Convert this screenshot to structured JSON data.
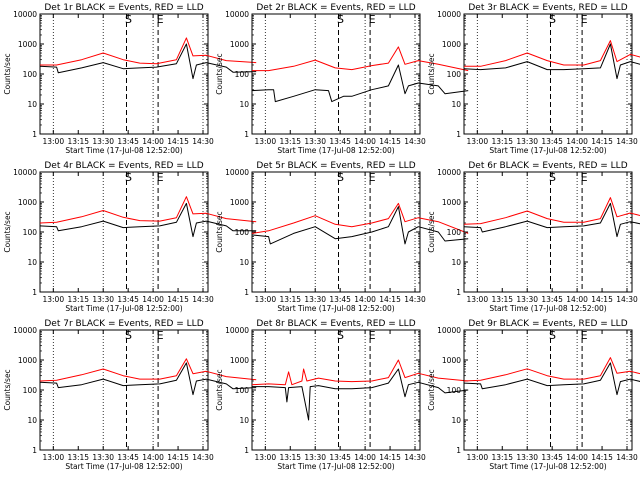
{
  "chart_data": {
    "type": "line",
    "y_scale": "log",
    "ylim": [
      1,
      10000
    ],
    "y_ticks": [
      1,
      10,
      100,
      1000,
      10000
    ],
    "y_tick_labels": [
      "1",
      "10",
      "100",
      "1000",
      "10000"
    ],
    "xlim": [
      "12:52",
      "14:33"
    ],
    "x_ticks": [
      "13:00",
      "13:15",
      "13:30",
      "13:45",
      "14:00",
      "14:15",
      "14:30"
    ],
    "x_tick_labels": [
      "13:00",
      "13:15",
      "13:30",
      "13:45",
      "14:00",
      "14:15",
      "14:30"
    ],
    "ylabel": "Counts/sec",
    "xlabel": "Start Time (17-Jul-08 12:52:00)",
    "dotted_lines": [
      "13:00",
      "13:30",
      "14:00",
      "14:30"
    ],
    "dashed_lines": [
      {
        "x": "13:44",
        "label": "S"
      },
      {
        "x": "14:03",
        "label": "E"
      }
    ],
    "series_colors": {
      "events": "#000000",
      "lld": "#ff0000"
    },
    "panels": [
      {
        "title": "Det 1r BLACK = Events, RED = LLD",
        "lld": [
          [
            0,
            200
          ],
          [
            10,
            200
          ],
          [
            25,
            300
          ],
          [
            38,
            500
          ],
          [
            50,
            300
          ],
          [
            60,
            230
          ],
          [
            70,
            220
          ],
          [
            82,
            300
          ],
          [
            88,
            1600
          ],
          [
            92,
            400
          ],
          [
            100,
            420
          ],
          [
            112,
            280
          ],
          [
            130,
            240
          ]
        ],
        "events": [
          [
            0,
            180
          ],
          [
            10,
            170
          ],
          [
            11,
            110
          ],
          [
            25,
            160
          ],
          [
            38,
            240
          ],
          [
            50,
            150
          ],
          [
            60,
            160
          ],
          [
            70,
            170
          ],
          [
            82,
            220
          ],
          [
            88,
            1000
          ],
          [
            92,
            70
          ],
          [
            94,
            200
          ],
          [
            100,
            240
          ],
          [
            112,
            170
          ],
          [
            116,
            115
          ],
          [
            130,
            120
          ]
        ]
      },
      {
        "title": "Det 2r BLACK = Events, RED = LLD",
        "lld": [
          [
            0,
            130
          ],
          [
            10,
            130
          ],
          [
            25,
            180
          ],
          [
            38,
            290
          ],
          [
            50,
            160
          ],
          [
            60,
            140
          ],
          [
            72,
            190
          ],
          [
            82,
            230
          ],
          [
            88,
            800
          ],
          [
            92,
            210
          ],
          [
            100,
            280
          ],
          [
            112,
            210
          ],
          [
            130,
            130
          ]
        ],
        "events": [
          [
            0,
            28
          ],
          [
            10,
            30
          ],
          [
            13,
            30
          ],
          [
            14,
            12
          ],
          [
            25,
            18
          ],
          [
            38,
            30
          ],
          [
            46,
            28
          ],
          [
            48,
            12
          ],
          [
            55,
            18
          ],
          [
            60,
            18
          ],
          [
            72,
            30
          ],
          [
            82,
            40
          ],
          [
            88,
            200
          ],
          [
            92,
            22
          ],
          [
            94,
            40
          ],
          [
            100,
            50
          ],
          [
            112,
            40
          ],
          [
            116,
            22
          ],
          [
            130,
            28
          ]
        ]
      },
      {
        "title": "Det 3r BLACK = Events, RED = LLD",
        "lld": [
          [
            0,
            180
          ],
          [
            10,
            180
          ],
          [
            25,
            280
          ],
          [
            38,
            500
          ],
          [
            50,
            280
          ],
          [
            60,
            200
          ],
          [
            72,
            200
          ],
          [
            82,
            280
          ],
          [
            88,
            1300
          ],
          [
            92,
            260
          ],
          [
            100,
            450
          ],
          [
            112,
            300
          ],
          [
            130,
            200
          ]
        ],
        "events": [
          [
            0,
            150
          ],
          [
            10,
            140
          ],
          [
            25,
            160
          ],
          [
            38,
            260
          ],
          [
            50,
            140
          ],
          [
            60,
            140
          ],
          [
            72,
            150
          ],
          [
            82,
            160
          ],
          [
            88,
            1000
          ],
          [
            92,
            70
          ],
          [
            94,
            200
          ],
          [
            100,
            260
          ],
          [
            112,
            170
          ],
          [
            116,
            110
          ],
          [
            130,
            100
          ]
        ]
      },
      {
        "title": "Det 4r BLACK = Events, RED = LLD",
        "lld": [
          [
            0,
            200
          ],
          [
            10,
            210
          ],
          [
            25,
            320
          ],
          [
            38,
            520
          ],
          [
            50,
            310
          ],
          [
            60,
            240
          ],
          [
            72,
            230
          ],
          [
            82,
            300
          ],
          [
            88,
            1500
          ],
          [
            92,
            400
          ],
          [
            100,
            420
          ],
          [
            112,
            280
          ],
          [
            130,
            220
          ]
        ],
        "events": [
          [
            0,
            160
          ],
          [
            10,
            150
          ],
          [
            11,
            110
          ],
          [
            25,
            150
          ],
          [
            38,
            230
          ],
          [
            50,
            140
          ],
          [
            60,
            150
          ],
          [
            72,
            160
          ],
          [
            82,
            210
          ],
          [
            88,
            900
          ],
          [
            92,
            70
          ],
          [
            94,
            200
          ],
          [
            100,
            230
          ],
          [
            112,
            160
          ],
          [
            116,
            110
          ],
          [
            130,
            110
          ]
        ]
      },
      {
        "title": "Det 5r BLACK = Events, RED = LLD",
        "lld": [
          [
            0,
            90
          ],
          [
            10,
            110
          ],
          [
            25,
            200
          ],
          [
            38,
            350
          ],
          [
            50,
            180
          ],
          [
            60,
            150
          ],
          [
            72,
            200
          ],
          [
            82,
            280
          ],
          [
            88,
            900
          ],
          [
            92,
            220
          ],
          [
            100,
            300
          ],
          [
            112,
            220
          ],
          [
            130,
            90
          ]
        ],
        "events": [
          [
            0,
            80
          ],
          [
            10,
            70
          ],
          [
            11,
            40
          ],
          [
            25,
            90
          ],
          [
            38,
            150
          ],
          [
            50,
            60
          ],
          [
            60,
            70
          ],
          [
            72,
            100
          ],
          [
            82,
            150
          ],
          [
            88,
            700
          ],
          [
            92,
            40
          ],
          [
            94,
            100
          ],
          [
            100,
            150
          ],
          [
            112,
            100
          ],
          [
            116,
            50
          ],
          [
            130,
            60
          ]
        ]
      },
      {
        "title": "Det 6r BLACK = Events, RED = LLD",
        "lld": [
          [
            0,
            180
          ],
          [
            10,
            190
          ],
          [
            25,
            300
          ],
          [
            38,
            500
          ],
          [
            50,
            280
          ],
          [
            60,
            210
          ],
          [
            72,
            210
          ],
          [
            82,
            280
          ],
          [
            88,
            1400
          ],
          [
            92,
            320
          ],
          [
            100,
            430
          ],
          [
            112,
            290
          ],
          [
            130,
            200
          ]
        ],
        "events": [
          [
            0,
            150
          ],
          [
            10,
            140
          ],
          [
            11,
            100
          ],
          [
            25,
            150
          ],
          [
            38,
            230
          ],
          [
            50,
            140
          ],
          [
            60,
            150
          ],
          [
            72,
            160
          ],
          [
            82,
            200
          ],
          [
            88,
            900
          ],
          [
            92,
            70
          ],
          [
            94,
            180
          ],
          [
            100,
            220
          ],
          [
            112,
            160
          ],
          [
            116,
            100
          ],
          [
            130,
            110
          ]
        ]
      },
      {
        "title": "Det 7r BLACK = Events, RED = LLD",
        "lld": [
          [
            0,
            200
          ],
          [
            10,
            210
          ],
          [
            25,
            320
          ],
          [
            38,
            500
          ],
          [
            50,
            300
          ],
          [
            60,
            230
          ],
          [
            72,
            230
          ],
          [
            82,
            300
          ],
          [
            88,
            1100
          ],
          [
            92,
            350
          ],
          [
            100,
            420
          ],
          [
            112,
            280
          ],
          [
            130,
            220
          ]
        ],
        "events": [
          [
            0,
            180
          ],
          [
            10,
            170
          ],
          [
            11,
            120
          ],
          [
            25,
            150
          ],
          [
            38,
            230
          ],
          [
            50,
            140
          ],
          [
            60,
            150
          ],
          [
            72,
            160
          ],
          [
            82,
            210
          ],
          [
            88,
            800
          ],
          [
            92,
            70
          ],
          [
            94,
            200
          ],
          [
            100,
            230
          ],
          [
            112,
            160
          ],
          [
            116,
            110
          ],
          [
            130,
            120
          ]
        ]
      },
      {
        "title": "Det 8r BLACK = Events, RED = LLD",
        "lld": [
          [
            0,
            150
          ],
          [
            10,
            160
          ],
          [
            20,
            150
          ],
          [
            22,
            400
          ],
          [
            24,
            150
          ],
          [
            30,
            200
          ],
          [
            31,
            500
          ],
          [
            33,
            200
          ],
          [
            40,
            250
          ],
          [
            50,
            200
          ],
          [
            60,
            190
          ],
          [
            72,
            200
          ],
          [
            82,
            260
          ],
          [
            88,
            1000
          ],
          [
            92,
            260
          ],
          [
            100,
            360
          ],
          [
            112,
            250
          ],
          [
            130,
            200
          ]
        ],
        "events": [
          [
            0,
            130
          ],
          [
            10,
            130
          ],
          [
            20,
            120
          ],
          [
            21,
            40
          ],
          [
            22,
            120
          ],
          [
            30,
            130
          ],
          [
            34,
            10
          ],
          [
            35,
            130
          ],
          [
            40,
            140
          ],
          [
            50,
            110
          ],
          [
            60,
            110
          ],
          [
            72,
            120
          ],
          [
            82,
            170
          ],
          [
            88,
            500
          ],
          [
            92,
            60
          ],
          [
            94,
            150
          ],
          [
            100,
            180
          ],
          [
            112,
            120
          ],
          [
            116,
            80
          ],
          [
            130,
            100
          ]
        ]
      },
      {
        "title": "Det 9r BLACK = Events, RED = LLD",
        "lld": [
          [
            0,
            200
          ],
          [
            10,
            210
          ],
          [
            25,
            320
          ],
          [
            38,
            510
          ],
          [
            50,
            300
          ],
          [
            60,
            230
          ],
          [
            72,
            230
          ],
          [
            82,
            300
          ],
          [
            88,
            1200
          ],
          [
            92,
            360
          ],
          [
            100,
            420
          ],
          [
            112,
            290
          ],
          [
            130,
            230
          ]
        ],
        "events": [
          [
            0,
            170
          ],
          [
            10,
            160
          ],
          [
            11,
            110
          ],
          [
            25,
            150
          ],
          [
            38,
            230
          ],
          [
            50,
            140
          ],
          [
            60,
            150
          ],
          [
            72,
            160
          ],
          [
            82,
            210
          ],
          [
            88,
            800
          ],
          [
            92,
            70
          ],
          [
            94,
            190
          ],
          [
            100,
            230
          ],
          [
            112,
            160
          ],
          [
            116,
            110
          ],
          [
            130,
            110
          ]
        ]
      }
    ]
  }
}
